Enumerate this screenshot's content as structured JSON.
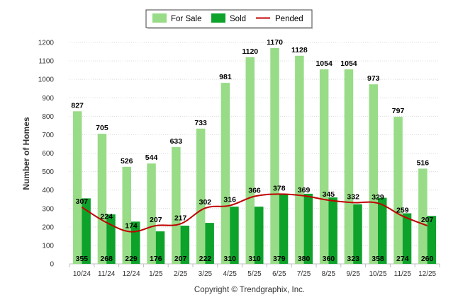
{
  "chart_data": {
    "type": "bar",
    "title": "",
    "xlabel": "",
    "ylabel": "Number of Homes",
    "ylim": [
      0,
      1200
    ],
    "yticks": [
      0,
      100,
      200,
      300,
      400,
      500,
      600,
      700,
      800,
      900,
      1000,
      1100,
      1200
    ],
    "grid": true,
    "legend_position": "top-center",
    "categories": [
      "10/24",
      "11/24",
      "12/24",
      "1/25",
      "2/25",
      "3/25",
      "4/25",
      "5/25",
      "6/25",
      "7/25",
      "8/25",
      "9/25",
      "10/25",
      "11/25",
      "12/25"
    ],
    "series": [
      {
        "name": "For Sale",
        "type": "bar",
        "color": "#98DC87",
        "values": [
          827,
          705,
          526,
          544,
          633,
          733,
          981,
          1120,
          1170,
          1128,
          1054,
          1054,
          973,
          797,
          516
        ]
      },
      {
        "name": "Sold",
        "type": "bar",
        "color": "#0DA22A",
        "values": [
          355,
          268,
          229,
          176,
          207,
          222,
          310,
          310,
          379,
          380,
          360,
          323,
          358,
          274,
          260
        ]
      },
      {
        "name": "Pended",
        "type": "line",
        "color": "#C00000",
        "values": [
          307,
          224,
          174,
          207,
          217,
          302,
          316,
          366,
          378,
          369,
          345,
          332,
          329,
          259,
          207
        ]
      }
    ],
    "footer": "Copyright © Trendgraphix, Inc."
  }
}
